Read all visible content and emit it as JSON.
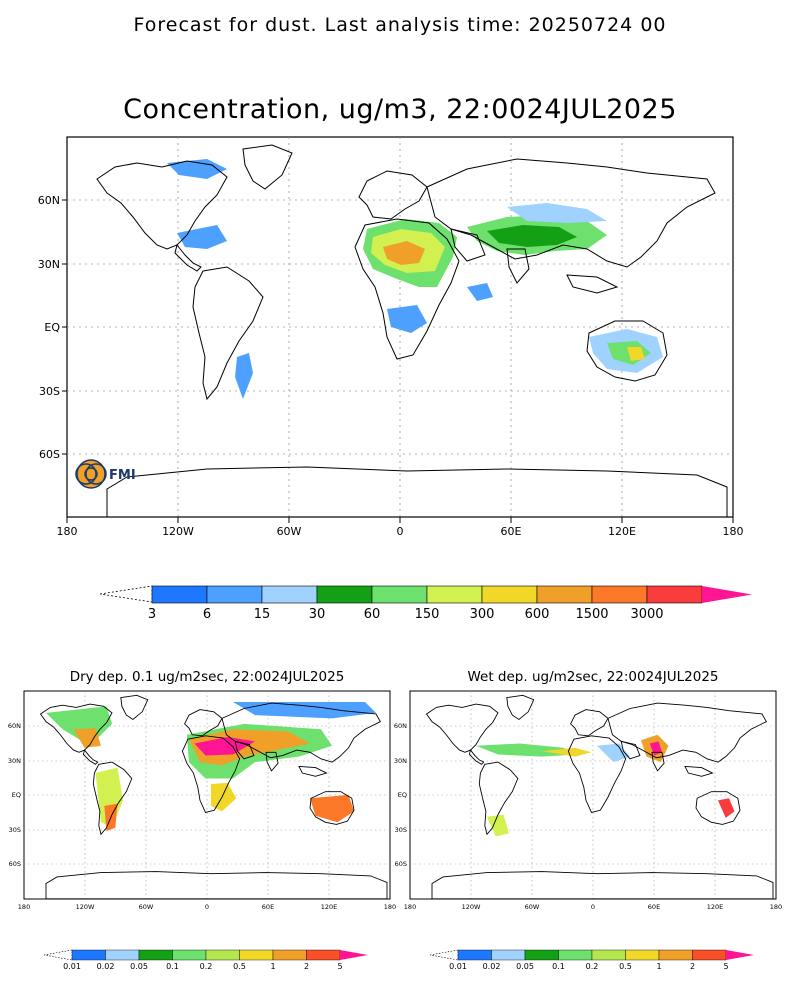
{
  "header": {
    "forecast_text": "Forecast for dust. Last analysis time: 20250724 00"
  },
  "logo": {
    "text": "FMI"
  },
  "main_panel": {
    "title": "Concentration, ug/m3, 22:0024JUL2025",
    "x_ticks": [
      "180",
      "120W",
      "60W",
      "0",
      "60E",
      "120E",
      "180"
    ],
    "y_ticks": [
      "60N",
      "30N",
      "EQ",
      "30S",
      "60S"
    ],
    "legend": {
      "labels": [
        "3",
        "6",
        "15",
        "30",
        "60",
        "150",
        "300",
        "600",
        "1500",
        "3000"
      ],
      "colors": [
        "#1e78ff",
        "#4ea0ff",
        "#a0d2ff",
        "#14a014",
        "#6ee06e",
        "#d2f050",
        "#f0d728",
        "#f0a028",
        "#fa7828",
        "#fa3c3c",
        "#ff1493"
      ]
    }
  },
  "dry_panel": {
    "title": "Dry dep. 0.1 ug/m2sec, 22:0024JUL2025",
    "x_ticks": [
      "180",
      "120W",
      "60W",
      "0",
      "60E",
      "120E",
      "180"
    ],
    "y_ticks": [
      "60N",
      "30N",
      "EQ",
      "30S",
      "60S"
    ],
    "legend": {
      "labels": [
        "0.01",
        "0.02",
        "0.05",
        "0.1",
        "0.2",
        "0.5",
        "1",
        "2",
        "5"
      ],
      "colors": [
        "#1e78ff",
        "#a0d2ff",
        "#14a014",
        "#6ee06e",
        "#b4e650",
        "#f0d728",
        "#f0a028",
        "#fa5028",
        "#ff1493"
      ]
    }
  },
  "wet_panel": {
    "title": "Wet dep. ug/m2sec, 22:0024JUL2025",
    "x_ticks": [
      "180",
      "120W",
      "60W",
      "0",
      "60E",
      "120E",
      "180"
    ],
    "y_ticks": [
      "60N",
      "30N",
      "EQ",
      "30S",
      "60S"
    ],
    "legend": {
      "labels": [
        "0.01",
        "0.02",
        "0.05",
        "0.1",
        "0.2",
        "0.5",
        "1",
        "2",
        "5"
      ],
      "colors": [
        "#1e78ff",
        "#a0d2ff",
        "#14a014",
        "#6ee06e",
        "#b4e650",
        "#f0d728",
        "#f0a028",
        "#fa5028",
        "#ff1493"
      ]
    }
  }
}
